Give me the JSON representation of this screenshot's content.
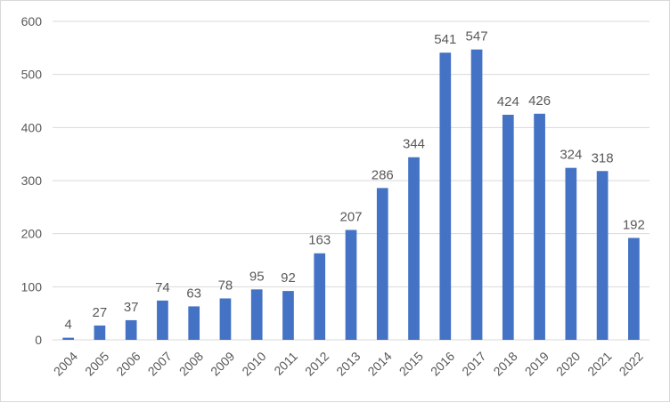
{
  "chart_data": {
    "type": "bar",
    "title": "",
    "xlabel": "",
    "ylabel": "",
    "categories": [
      "2004",
      "2005",
      "2006",
      "2007",
      "2008",
      "2009",
      "2010",
      "2011",
      "2012",
      "2013",
      "2014",
      "2015",
      "2016",
      "2017",
      "2018",
      "2019",
      "2020",
      "2021",
      "2022"
    ],
    "values": [
      4,
      27,
      37,
      74,
      63,
      78,
      95,
      92,
      163,
      207,
      286,
      344,
      541,
      547,
      424,
      426,
      324,
      318,
      192
    ],
    "ylim": [
      0,
      600
    ],
    "yticks": [
      0,
      100,
      200,
      300,
      400,
      500,
      600
    ],
    "grid": true,
    "legend": "none",
    "data_labels": true,
    "bar_color": "#4472c4",
    "grid_color": "#d9d9d9",
    "text_color": "#595959"
  }
}
